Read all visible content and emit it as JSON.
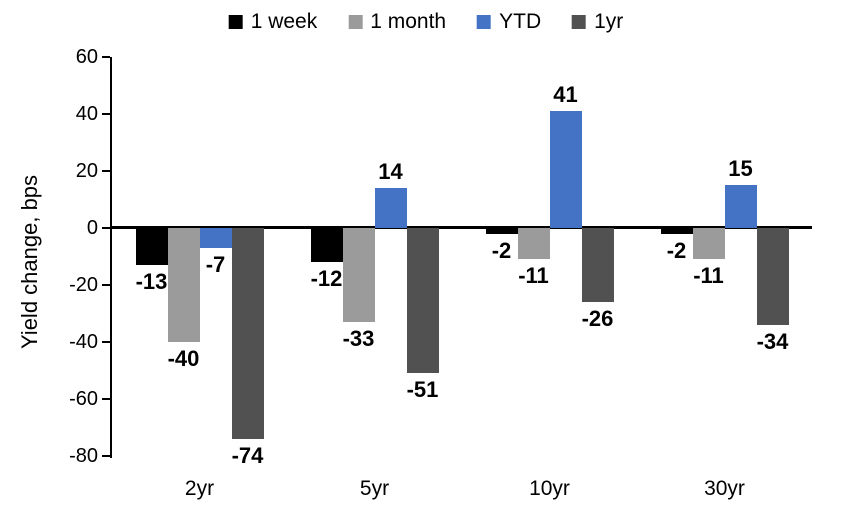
{
  "chart_data": {
    "type": "bar",
    "title": "",
    "xlabel": "",
    "ylabel": "Yield change, bps",
    "categories": [
      "2yr",
      "5yr",
      "10yr",
      "30yr"
    ],
    "series": [
      {
        "name": "1 week",
        "color": "#000000",
        "values": [
          -13,
          -12,
          -2,
          -2
        ]
      },
      {
        "name": "1 month",
        "color": "#9B9B9B",
        "values": [
          -40,
          -33,
          -11,
          -11
        ]
      },
      {
        "name": "YTD",
        "color": "#4472C4",
        "values": [
          -7,
          14,
          41,
          15
        ]
      },
      {
        "name": "1yr",
        "color": "#515151",
        "values": [
          -74,
          -51,
          -26,
          -34
        ]
      }
    ],
    "ylim": [
      -80,
      60
    ],
    "yticks": [
      60,
      40,
      20,
      0,
      -20,
      -40,
      -60,
      -80
    ],
    "legend_position": "top",
    "grid": false,
    "data_labels": true,
    "axis_color": "#000000",
    "background_color": "#FFFFFF"
  }
}
